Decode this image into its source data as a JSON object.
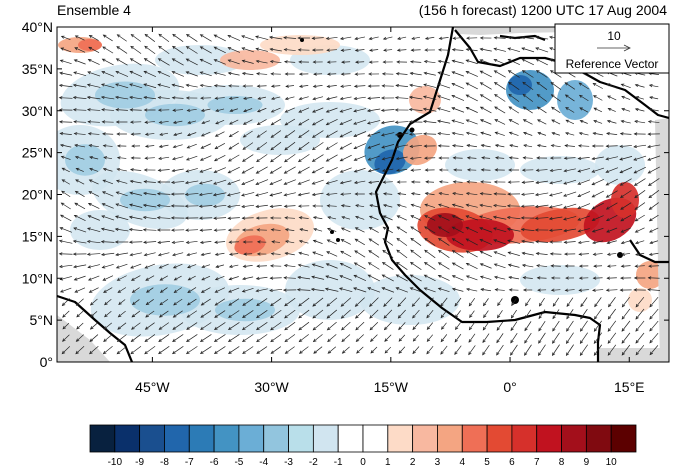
{
  "title_left": "Ensemble 4",
  "title_right": "(156 h forecast) 1200 UTC 17 Aug 2004",
  "reference_vector": {
    "magnitude": "10",
    "label": "Reference Vector"
  },
  "map": {
    "lon_range": [
      -57,
      20
    ],
    "lat_range": [
      0,
      40
    ],
    "lat_ticks": [
      {
        "value": 40,
        "label": "40°N"
      },
      {
        "value": 35,
        "label": "35°N"
      },
      {
        "value": 30,
        "label": "30°N"
      },
      {
        "value": 25,
        "label": "25°N"
      },
      {
        "value": 20,
        "label": "20°N"
      },
      {
        "value": 15,
        "label": "15°N"
      },
      {
        "value": 10,
        "label": "10°N"
      },
      {
        "value": 5,
        "label": "5°N"
      },
      {
        "value": 0,
        "label": "0°"
      }
    ],
    "lon_ticks": [
      {
        "value": -45,
        "label": "45°W"
      },
      {
        "value": -30,
        "label": "30°W"
      },
      {
        "value": -15,
        "label": "15°W"
      },
      {
        "value": 0,
        "label": "0°"
      },
      {
        "value": 15,
        "label": "15°E"
      }
    ]
  },
  "colorbar": {
    "labels": [
      "-10",
      "-9",
      "-8",
      "-7",
      "-6",
      "-5",
      "-4",
      "-3",
      "-2",
      "-1",
      "0",
      "1",
      "2",
      "3",
      "4",
      "5",
      "6",
      "7",
      "8",
      "9",
      "10"
    ],
    "colors": [
      "#08213f",
      "#0a306b",
      "#1a4f8f",
      "#2166ac",
      "#2c7bb6",
      "#4393c3",
      "#6baed6",
      "#92c5de",
      "#b9dfea",
      "#d1e5f0",
      "#ffffff",
      "#ffffff",
      "#fddbc7",
      "#f8b8a0",
      "#f4a582",
      "#ef6f56",
      "#e34a33",
      "#d6302b",
      "#c1121f",
      "#a30f1b",
      "#800a10",
      "#5c0000"
    ]
  },
  "colors": {
    "coast": "#000000",
    "land_missing": "#d9d9d9"
  }
}
